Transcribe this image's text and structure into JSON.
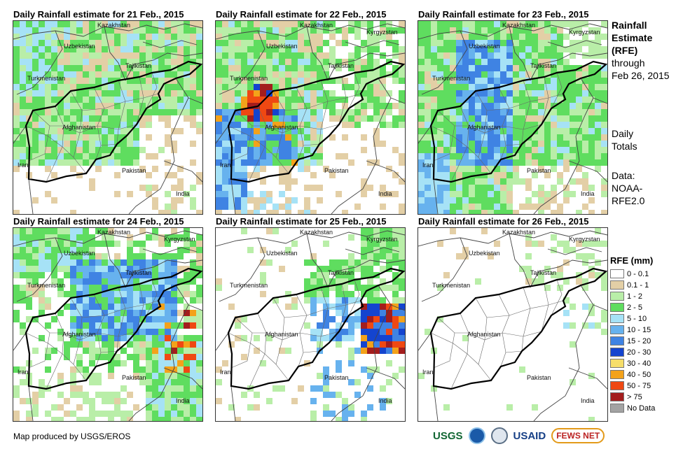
{
  "panels": [
    {
      "title": "Daily Rainfall estimate for 21 Feb., 2015",
      "style": "light_wide",
      "labels": {
        "kazakhstan": "Kazakhstan",
        "kyrgyzstan": "",
        "uzbekistan": "Uzbekistan",
        "tajikistan": "Tajikistan",
        "turkmenistan": "Turkmenistan",
        "afghanistan": "Afghanistan",
        "iran": "Iran",
        "pakistan": "Pakistan",
        "india": "India"
      }
    },
    {
      "title": "Daily Rainfall estimate for 22 Feb., 2015",
      "style": "heavy_west",
      "labels": {
        "kazakhstan": "Kazakhstan",
        "kyrgyzstan": "Kyrgyzstan",
        "uzbekistan": "Uzbekistan",
        "tajikistan": "Tajikistan",
        "turkmenistan": "Turkmenistan",
        "afghanistan": "Afghanistan",
        "iran": "Iran",
        "pakistan": "Pakistan",
        "india": "India"
      }
    },
    {
      "title": "Daily Rainfall estimate for 23 Feb., 2015",
      "style": "central_blue",
      "labels": {
        "kazakhstan": "Kazakhstan",
        "kyrgyzstan": "Kyrgyzstan",
        "uzbekistan": "Uzbekistan",
        "tajikistan": "Tajikistan",
        "turkmenistan": "Turkmenistan",
        "afghanistan": "Afghanistan",
        "iran": "Iran",
        "pakistan": "Pakistan",
        "india": "India"
      }
    },
    {
      "title": "Daily Rainfall estimate for 24 Feb., 2015",
      "style": "northeast_heavy",
      "labels": {
        "kazakhstan": "Kazakhstan",
        "kyrgyzstan": "Kyrgyzstan",
        "uzbekistan": "Uzbekistan",
        "tajikistan": "Tajikistan",
        "turkmenistan": "Turkmenistan",
        "afghanistan": "Afghanistan",
        "iran": "Iran",
        "pakistan": "Pakistan",
        "india": "India"
      }
    },
    {
      "title": "Daily Rainfall estimate for 25 Feb., 2015",
      "style": "east_heavy",
      "labels": {
        "kazakhstan": "Kazakhstan",
        "kyrgyzstan": "Kyrgyzstan",
        "uzbekistan": "Uzbekistan",
        "tajikistan": "Tajikistan",
        "turkmenistan": "Turkmenistan",
        "afghanistan": "Afghanistan",
        "iran": "Iran",
        "pakistan": "Pakistan",
        "india": "India"
      }
    },
    {
      "title": "Daily Rainfall estimate for 26 Feb., 2015",
      "style": "dry",
      "labels": {
        "kazakhstan": "Kazakhstan",
        "kyrgyzstan": "Kyrgyzstan",
        "uzbekistan": "Uzbekistan",
        "tajikistan": "Tajikistan",
        "turkmenistan": "Turkmenistan",
        "afghanistan": "Afghanistan",
        "iran": "Iran",
        "pakistan": "Pakistan",
        "india": "India"
      }
    }
  ],
  "side": {
    "title_line1": "Rainfall",
    "title_line2": "Estimate",
    "title_line3": "(RFE)",
    "through": "through",
    "through_date": "Feb 26, 2015",
    "daily1": "Daily",
    "daily2": "Totals",
    "data1": "Data:",
    "data2": "NOAA-",
    "data3": "RFE2.0"
  },
  "legend": {
    "title": "RFE (mm)",
    "items": [
      {
        "label": "0 - 0.1",
        "color": "#ffffff"
      },
      {
        "label": "0.1 - 1",
        "color": "#e3cfa6"
      },
      {
        "label": "1 - 2",
        "color": "#b9eea8"
      },
      {
        "label": "2 - 5",
        "color": "#5fdd5f"
      },
      {
        "label": "5 - 10",
        "color": "#a6e2f6"
      },
      {
        "label": "10 - 15",
        "color": "#67b2ee"
      },
      {
        "label": "15 - 20",
        "color": "#3f83e3"
      },
      {
        "label": "20 - 30",
        "color": "#1444cf"
      },
      {
        "label": "30 - 40",
        "color": "#f6de6a"
      },
      {
        "label": "40 - 50",
        "color": "#f3a21a"
      },
      {
        "label": "50 - 75",
        "color": "#ef4812"
      },
      {
        "label": "> 75",
        "color": "#a31d1d"
      },
      {
        "label": "No Data",
        "color": "#a3a3a3"
      }
    ]
  },
  "footer": "Map produced by USGS/EROS",
  "logos": {
    "usgs": "USGS",
    "usaid": "USAID",
    "fews": "FEWS NET"
  }
}
